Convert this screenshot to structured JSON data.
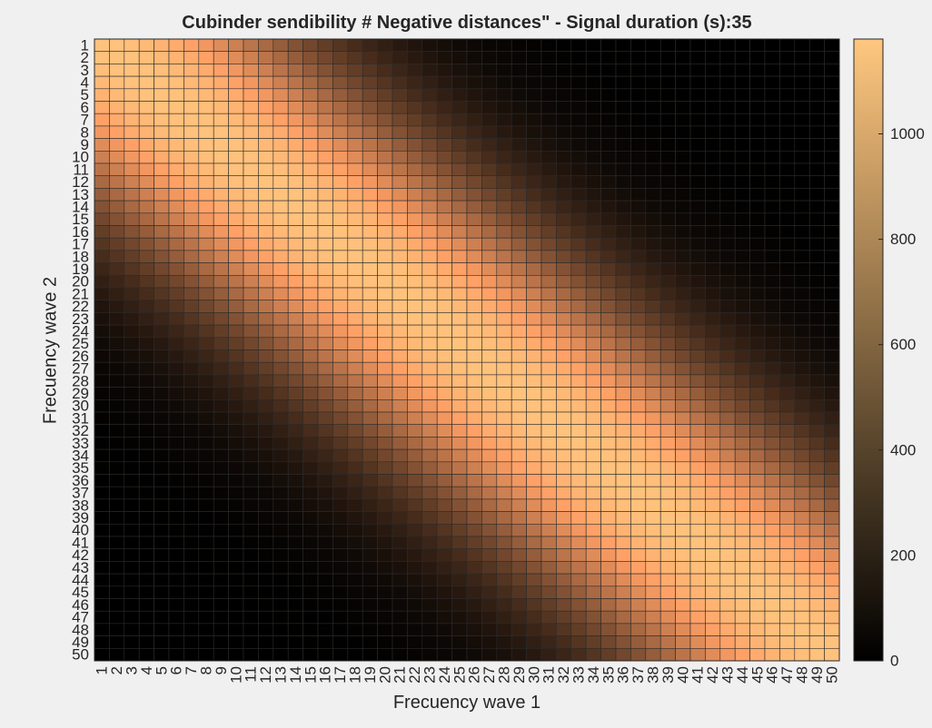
{
  "chart_data": {
    "type": "heatmap",
    "title": "Cubinder sendibility # Negative distances\" - Signal duration (s):35",
    "xlabel": "Frecuency wave 1",
    "ylabel": "Frecuency wave 2",
    "x_categories": [
      1,
      2,
      3,
      4,
      5,
      6,
      7,
      8,
      9,
      10,
      11,
      12,
      13,
      14,
      15,
      16,
      17,
      18,
      19,
      20,
      21,
      22,
      23,
      24,
      25,
      26,
      27,
      28,
      29,
      30,
      31,
      32,
      33,
      34,
      35,
      36,
      37,
      38,
      39,
      40,
      41,
      42,
      43,
      44,
      45,
      46,
      47,
      48,
      49,
      50
    ],
    "y_categories": [
      1,
      2,
      3,
      4,
      5,
      6,
      7,
      8,
      9,
      10,
      11,
      12,
      13,
      14,
      15,
      16,
      17,
      18,
      19,
      20,
      21,
      22,
      23,
      24,
      25,
      26,
      27,
      28,
      29,
      30,
      31,
      32,
      33,
      34,
      35,
      36,
      37,
      38,
      39,
      40,
      41,
      42,
      43,
      44,
      45,
      46,
      47,
      48,
      49,
      50
    ],
    "value_pattern": "peak along the diagonal (x = y), about 1150; falls to about 0 at large |x - y|",
    "peak_value": 1150,
    "colormap": "copper",
    "colorbar": {
      "ticks": [
        0,
        200,
        400,
        600,
        800,
        1000
      ],
      "range": [
        0,
        1180
      ]
    },
    "grid": true,
    "colors": {
      "background": "#f0f0f0",
      "low": "#000000",
      "high": "#ffc77f"
    }
  }
}
